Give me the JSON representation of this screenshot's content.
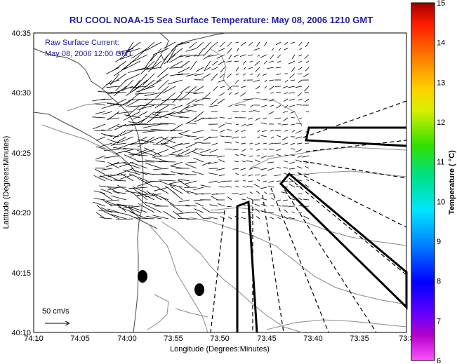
{
  "title": "RU COOL  NOAA-15  Sea Surface Temperature:  May 08, 2006 1210 GMT",
  "inset": {
    "line1": "Raw Surface Current:",
    "line2": "May 08, 2006 12:00 GMT",
    "scale_label": "50 cm/s"
  },
  "axes": {
    "xlabel": "Longitude (Degrees:Minutes)",
    "ylabel": "Latitude (Degrees:Minutes)",
    "xticks": [
      "74:10",
      "74:05",
      "74:00",
      "73:55",
      "73:50",
      "73:45",
      "73:40",
      "73:35",
      "73:3"
    ],
    "yticks": [
      "40:35",
      "40:30",
      "40:25",
      "40:20",
      "40:15",
      "40:10"
    ]
  },
  "colorbar": {
    "label": "Temperature ( °C)",
    "ticks": [
      "15",
      "14",
      "13",
      "12",
      "11",
      "10",
      "9",
      "8",
      "7",
      "6"
    ],
    "min": 6,
    "max": 15
  },
  "colors": {
    "title": "#1f1fa8",
    "inset_text": "#1a1aa6",
    "frame": "#000000",
    "land": "#444444",
    "contour": "#8a8a8a"
  }
}
